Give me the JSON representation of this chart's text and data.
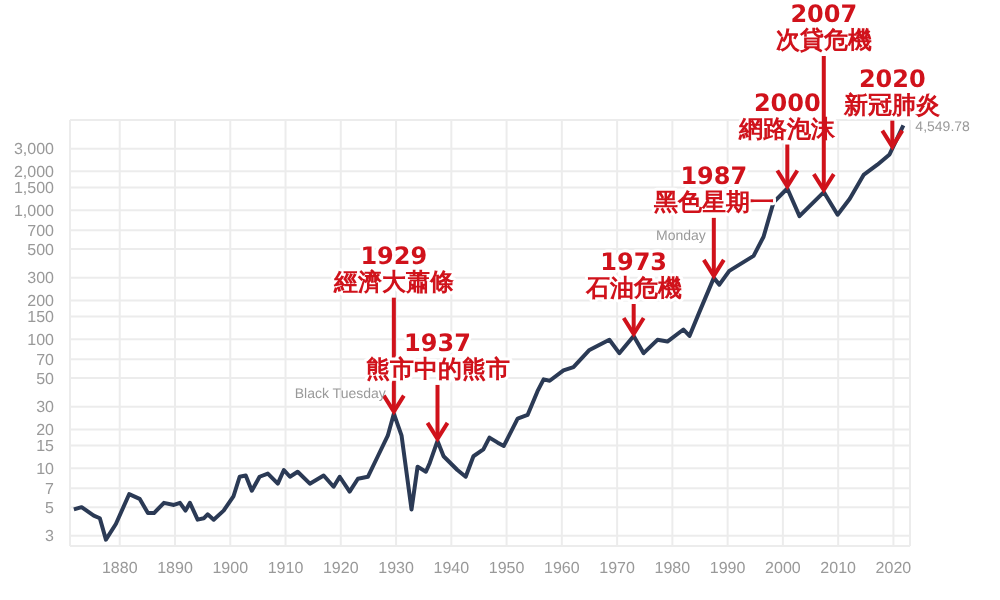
{
  "chart_data": {
    "type": "line",
    "log": "y",
    "grid": true,
    "marker": "none",
    "line_style": "solid",
    "xlim": [
      1871,
      2023
    ],
    "xticks": [
      1880,
      1890,
      1900,
      1910,
      1920,
      1930,
      1940,
      1950,
      1960,
      1970,
      1980,
      1990,
      2000,
      2010,
      2020
    ],
    "ylim": [
      2.5,
      5000
    ],
    "yticks": [
      3,
      5,
      7,
      10,
      15,
      20,
      30,
      50,
      70,
      100,
      150,
      200,
      300,
      500,
      700,
      {
        "value": 1000,
        "label": "1,000"
      },
      {
        "value": 1500,
        "label": "1,500"
      },
      {
        "value": 2000,
        "label": "2,000"
      },
      {
        "value": 3000,
        "label": "3,000"
      }
    ],
    "series": [
      {
        "color": "#2b3a55",
        "x": [
          1871.7,
          1873.1,
          1875.3,
          1876.4,
          1877.5,
          1879.3,
          1881.7,
          1883.6,
          1885.1,
          1886.2,
          1888.0,
          1889.8,
          1890.9,
          1891.9,
          1892.7,
          1894.1,
          1895.2,
          1895.9,
          1897.0,
          1898.8,
          1900.6,
          1901.7,
          1902.8,
          1903.9,
          1905.3,
          1906.8,
          1908.6,
          1909.7,
          1910.8,
          1912.2,
          1914.4,
          1916.9,
          1918.7,
          1919.8,
          1921.6,
          1923.1,
          1924.9,
          1926.7,
          1928.5,
          1929.6,
          1931.0,
          1932.8,
          1933.9,
          1935.4,
          1936.1,
          1937.5,
          1938.6,
          1941.1,
          1942.6,
          1944.0,
          1945.8,
          1946.9,
          1948.4,
          1949.5,
          1952.0,
          1953.8,
          1955.6,
          1956.7,
          1957.8,
          1960.3,
          1962.1,
          1965.0,
          1968.6,
          1970.4,
          1973.0,
          1974.8,
          1977.3,
          1979.1,
          1982.0,
          1983.1,
          1984.9,
          1987.5,
          1988.5,
          1990.3,
          1994.7,
          1996.5,
          1998.3,
          2000.8,
          2003.0,
          2007.4,
          2009.9,
          2012.1,
          2014.6,
          2017.1,
          2019.3,
          2021.8
        ],
        "values": [
          4.8,
          5.0,
          4.3,
          4.1,
          2.8,
          3.7,
          6.3,
          5.8,
          4.5,
          4.5,
          5.4,
          5.2,
          5.4,
          4.7,
          5.4,
          4.0,
          4.1,
          4.4,
          4.0,
          4.7,
          6.1,
          8.6,
          8.8,
          6.7,
          8.6,
          9.1,
          7.6,
          9.7,
          8.6,
          9.4,
          7.6,
          8.8,
          7.2,
          8.6,
          6.6,
          8.3,
          8.6,
          12.4,
          17.9,
          26.5,
          17.9,
          4.8,
          10.3,
          9.4,
          11.0,
          16.3,
          12.4,
          9.7,
          8.6,
          12.4,
          14.0,
          17.3,
          15.8,
          14.9,
          24.3,
          25.9,
          39.6,
          48.9,
          47.7,
          57.3,
          60.9,
          82.6,
          99,
          78,
          106,
          78,
          99,
          96,
          119,
          106,
          163,
          299,
          265,
          339,
          443,
          623,
          1151,
          1472,
          900,
          1382,
          923,
          1225,
          1875,
          2253,
          2706,
          4549.78
        ]
      }
    ],
    "annotations": [
      {
        "text": "1929\n經濟大蕭條",
        "x": 1929.6,
        "y": 26.5
      },
      {
        "text": "1937\n熊市中的熊市",
        "x": 1937.5,
        "y": 16.3
      },
      {
        "text": "1973\n石油危機",
        "x": 1973.0,
        "y": 106
      },
      {
        "text": "1987\n黑色星期一",
        "x": 1987.5,
        "y": 299
      },
      {
        "text": "2000\n網路泡沫",
        "x": 2000.8,
        "y": 1472
      },
      {
        "text": "2007\n次貸危機",
        "x": 2007.4,
        "y": 1382
      },
      {
        "text": "2020\n新冠肺炎",
        "x": 2019.8,
        "y": 3000
      },
      {
        "text": "Black Tuesday",
        "x": 1929.6,
        "y": 26.5
      },
      {
        "text": "Monday",
        "x": 1987.5,
        "y": 299
      },
      {
        "text": "4,549.78",
        "x": 2021.8,
        "y": 4549.78
      }
    ]
  }
}
